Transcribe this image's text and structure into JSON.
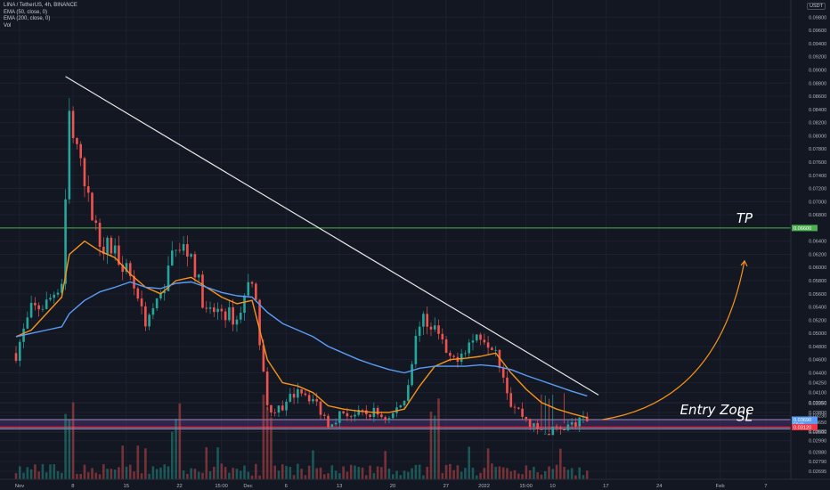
{
  "header": {
    "symbol_line": "LINA / TetherUS, 4h, BINANCE",
    "indicators": [
      "EMA (50, close, 0)",
      "EMA (200, close, 0)",
      "Vol"
    ],
    "currency": "USDT"
  },
  "chart_data": {
    "type": "line",
    "title": "LINA / TetherUS, 4h, BINANCE",
    "xlabel": "",
    "ylabel": "",
    "ylim": [
      0.0272,
      0.1005
    ],
    "x_ticks": [
      "Nov",
      "8",
      "15",
      "22",
      "15:00",
      "Dec",
      "6",
      "13",
      "20",
      "27",
      "2022",
      "15:00",
      "10",
      "17",
      "24",
      "Feb",
      "7"
    ],
    "y_ticks": [
      "0.09800",
      "0.09600",
      "0.09400",
      "0.09200",
      "0.09000",
      "0.08800",
      "0.08600",
      "0.08400",
      "0.08200",
      "0.08000",
      "0.07800",
      "0.07600",
      "0.07400",
      "0.07200",
      "0.07000",
      "0.06800",
      "0.06400",
      "0.06200",
      "0.06000",
      "0.05800",
      "0.05600",
      "0.05400",
      "0.05200",
      "0.05000",
      "0.04800",
      "0.04600",
      "0.04400",
      "0.04250",
      "0.04100",
      "0.03950",
      "0.03800",
      "0.03650",
      "0.03500",
      "0.03350",
      "0.03230",
      "0.03080",
      "0.02990",
      "0.02880",
      "0.02790",
      "0.02695"
    ],
    "price_labels": [
      {
        "text": "0.06600",
        "value": 0.066,
        "color": "#4caf50"
      },
      {
        "text": "0.03690",
        "value": 0.0369,
        "color": "#5b9cf6",
        "sub": "50:11"
      },
      {
        "text": "0.03120",
        "value": 0.0312,
        "color": "#f23645"
      }
    ],
    "levels": {
      "tp": 0.066,
      "entry_top": 0.0369,
      "entry_bottom": 0.0355,
      "sl": 0.0312
    },
    "price_x": [
      "Nov 1",
      "Nov 3",
      "Nov 5",
      "Nov 7",
      "Nov 8",
      "Nov 10",
      "Nov 12",
      "Nov 14",
      "Nov 16",
      "Nov 18",
      "Nov 20",
      "Nov 22",
      "Nov 24",
      "Nov 26",
      "Nov 28",
      "Nov 30",
      "Dec 2",
      "Dec 4",
      "Dec 6",
      "Dec 8",
      "Dec 10",
      "Dec 12",
      "Dec 14",
      "Dec 16",
      "Dec 18",
      "Dec 20",
      "Dec 22",
      "Dec 24",
      "Dec 26",
      "Dec 28",
      "Dec 30",
      "Jan 1",
      "Jan 3",
      "Jan 5",
      "Jan 7",
      "Jan 9",
      "Jan 11",
      "Jan 13",
      "Jan 15"
    ],
    "price_t": [
      0,
      2,
      4,
      6,
      7,
      9,
      11,
      13,
      15,
      17,
      19,
      21,
      23,
      25,
      27,
      29,
      31,
      33,
      35,
      37,
      39,
      41,
      43,
      45,
      47,
      49,
      51,
      53,
      55,
      57,
      59,
      61,
      63,
      65,
      67,
      69,
      71,
      73,
      75
    ],
    "series": [
      {
        "name": "Price",
        "color": "#26a69a",
        "values": [
          0.047,
          0.0535,
          0.0545,
          0.058,
          0.083,
          0.072,
          0.064,
          0.0625,
          0.059,
          0.052,
          0.0555,
          0.064,
          0.062,
          0.053,
          0.0535,
          0.052,
          0.059,
          0.039,
          0.038,
          0.042,
          0.04,
          0.0365,
          0.038,
          0.0375,
          0.038,
          0.037,
          0.04,
          0.052,
          0.051,
          0.0455,
          0.048,
          0.05,
          0.048,
          0.0395,
          0.037,
          0.0345,
          0.0355,
          0.036,
          0.0369
        ]
      },
      {
        "name": "EMA (50, close, 0)",
        "color": "#f7931a",
        "values": [
          0.0495,
          0.0505,
          0.053,
          0.0555,
          0.062,
          0.064,
          0.0625,
          0.0615,
          0.059,
          0.057,
          0.056,
          0.058,
          0.0585,
          0.057,
          0.0555,
          0.0545,
          0.055,
          0.046,
          0.0425,
          0.042,
          0.041,
          0.039,
          0.0385,
          0.0382,
          0.038,
          0.038,
          0.0385,
          0.042,
          0.045,
          0.046,
          0.0462,
          0.0465,
          0.047,
          0.044,
          0.0415,
          0.0395,
          0.0385,
          0.0378,
          0.0372
        ]
      },
      {
        "name": "EMA (200, close, 0)",
        "color": "#5b9cf6",
        "values": [
          0.0495,
          0.05,
          0.0505,
          0.051,
          0.053,
          0.055,
          0.0563,
          0.057,
          0.0578,
          0.057,
          0.0568,
          0.0576,
          0.0578,
          0.057,
          0.0562,
          0.0557,
          0.0555,
          0.0532,
          0.0515,
          0.0505,
          0.0495,
          0.048,
          0.047,
          0.046,
          0.0452,
          0.0445,
          0.044,
          0.0447,
          0.045,
          0.045,
          0.045,
          0.0452,
          0.045,
          0.0445,
          0.0436,
          0.0428,
          0.042,
          0.0412,
          0.0405
        ]
      }
    ],
    "trendline": {
      "from": [
        "Nov 7",
        0.089
      ],
      "to": [
        "Jan 15",
        0.0345
      ]
    },
    "projection": {
      "from": [
        "Jan 15",
        0.0369
      ],
      "to": [
        "Jan 30",
        0.06
      ]
    },
    "annotations": {
      "tp": "TP",
      "entry": "Entry Zone",
      "sl": "SL"
    }
  }
}
